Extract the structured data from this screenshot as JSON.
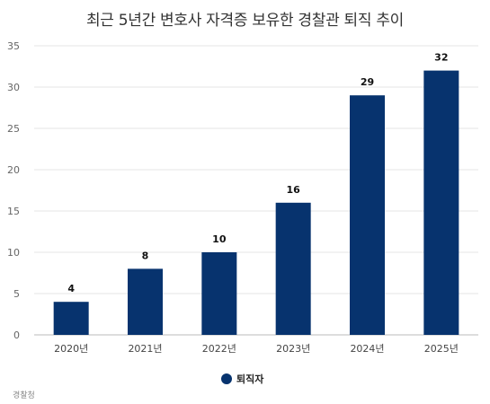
{
  "chart_data": {
    "type": "bar",
    "title": "최근 5년간 변호사 자격증 보유한 경찰관 퇴직 추이",
    "categories": [
      "2020년",
      "2021년",
      "2022년",
      "2023년",
      "2024년",
      "2025년"
    ],
    "series": [
      {
        "name": "퇴직자",
        "values": [
          4,
          8,
          10,
          16,
          29,
          32
        ]
      }
    ],
    "data_labels": [
      "4",
      "8",
      "10",
      "16",
      "29",
      "32"
    ],
    "yticks": [
      "0",
      "5",
      "10",
      "15",
      "20",
      "25",
      "30",
      "35"
    ],
    "ylim": [
      0,
      35
    ],
    "grid": true,
    "legend_position": "bottom",
    "bar_color": "#07336e",
    "source": "경찰청"
  }
}
